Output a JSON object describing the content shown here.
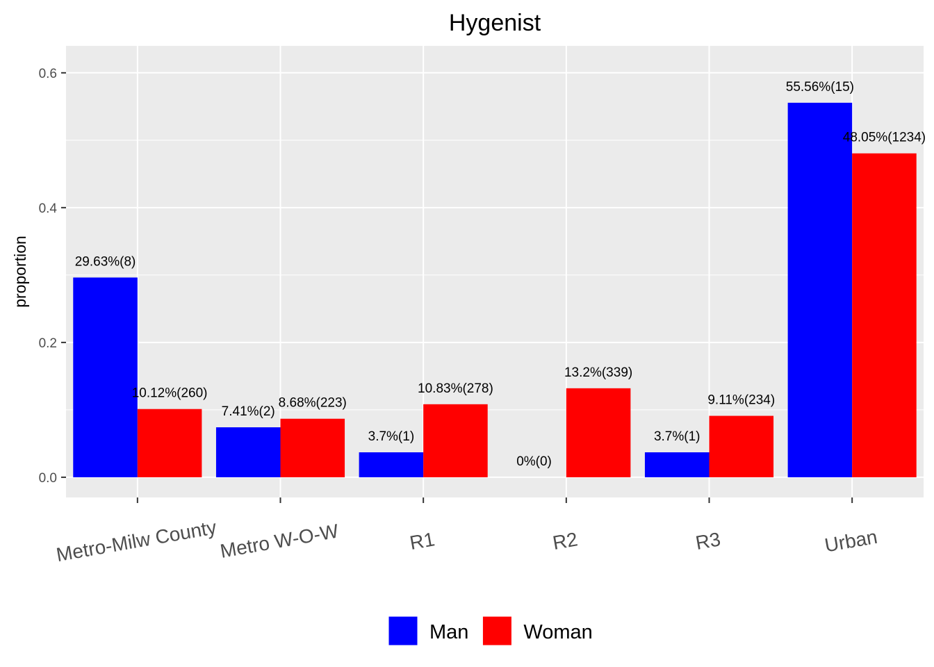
{
  "chart_data": {
    "type": "bar",
    "title": "Hygenist",
    "xlabel": "",
    "ylabel": "proportion",
    "ylim": [
      -0.03,
      0.64
    ],
    "yticks": [
      0.0,
      0.2,
      0.4,
      0.6
    ],
    "ytick_labels": [
      "0.0",
      "0.2",
      "0.4",
      "0.6"
    ],
    "grid": true,
    "legend_position": "bottom",
    "categories": [
      "Metro-Milw County",
      "Metro W-O-W",
      "R1",
      "R2",
      "R3",
      "Urban"
    ],
    "series": [
      {
        "name": "Man",
        "color": "#0000ff",
        "values": [
          0.2963,
          0.0741,
          0.037,
          0.0,
          0.037,
          0.5556
        ],
        "labels": [
          "29.63%(8)",
          "7.41%(2)",
          "3.7%(1)",
          "0%(0)",
          "3.7%(1)",
          "55.56%(15)"
        ]
      },
      {
        "name": "Woman",
        "color": "#ff0000",
        "values": [
          0.1012,
          0.0868,
          0.1083,
          0.132,
          0.0911,
          0.4805
        ],
        "labels": [
          "10.12%(260)",
          "8.68%(223)",
          "10.83%(278)",
          "13.2%(339)",
          "9.11%(234)",
          "48.05%(1234)"
        ]
      }
    ]
  }
}
